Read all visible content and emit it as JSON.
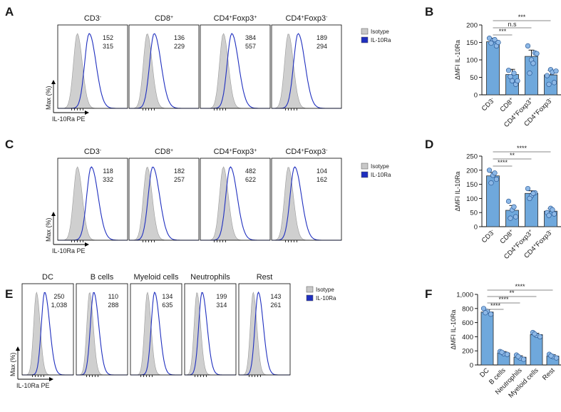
{
  "figure": {
    "flow_panels": [
      {
        "label": "A",
        "y_axis_label": "Max (%)",
        "x_axis_label": "IL-10Ra PE",
        "legend": [
          {
            "name": "Isotype",
            "color": "#c8c8c8"
          },
          {
            "name": "IL-10Ra",
            "color": "#1f2fbf"
          }
        ],
        "histograms": [
          {
            "title": "CD3",
            "sup": "-",
            "isotype_mfi": "152",
            "il10ra_mfi": "315"
          },
          {
            "title": "CD8",
            "sup": "+",
            "isotype_mfi": "136",
            "il10ra_mfi": "229"
          },
          {
            "title": "CD4",
            "sup": "+",
            "title2": "Foxp3",
            "sup2": "+",
            "isotype_mfi": "384",
            "il10ra_mfi": "557"
          },
          {
            "title": "CD4",
            "sup": "+",
            "title2": "Foxp3",
            "sup2": "-",
            "isotype_mfi": "189",
            "il10ra_mfi": "294"
          }
        ]
      },
      {
        "label": "C",
        "y_axis_label": "Max (%)",
        "x_axis_label": "IL-10Ra PE",
        "legend": [
          {
            "name": "Isotype",
            "color": "#c8c8c8"
          },
          {
            "name": "IL-10Ra",
            "color": "#1f2fbf"
          }
        ],
        "histograms": [
          {
            "title": "CD3",
            "sup": "-",
            "isotype_mfi": "118",
            "il10ra_mfi": "332"
          },
          {
            "title": "CD8",
            "sup": "+",
            "isotype_mfi": "182",
            "il10ra_mfi": "257"
          },
          {
            "title": "CD4",
            "sup": "+",
            "title2": "Foxp3",
            "sup2": "+",
            "isotype_mfi": "482",
            "il10ra_mfi": "622"
          },
          {
            "title": "CD4",
            "sup": "+",
            "title2": "Foxp3",
            "sup2": "-",
            "isotype_mfi": "104",
            "il10ra_mfi": "162"
          }
        ]
      },
      {
        "label": "E",
        "y_axis_label": "Max (%)",
        "x_axis_label": "IL-10Ra PE",
        "legend": [
          {
            "name": "Isotype",
            "color": "#c8c8c8"
          },
          {
            "name": "IL-10Ra",
            "color": "#1f2fbf"
          }
        ],
        "histograms": [
          {
            "title": "DC",
            "isotype_mfi": "250",
            "il10ra_mfi": "1,038"
          },
          {
            "title": "B cells",
            "isotype_mfi": "110",
            "il10ra_mfi": "288"
          },
          {
            "title": "Myeloid cells",
            "isotype_mfi": "134",
            "il10ra_mfi": "635"
          },
          {
            "title": "Neutrophils",
            "isotype_mfi": "199",
            "il10ra_mfi": "314"
          },
          {
            "title": "Rest",
            "isotype_mfi": "143",
            "il10ra_mfi": "261"
          }
        ]
      }
    ]
  },
  "chart_data": [
    {
      "label": "B",
      "type": "bar",
      "ylabel": "ΔMFI IL-10Ra",
      "ylim": [
        0,
        200
      ],
      "yticks": [
        "0",
        "50",
        "100",
        "150",
        "200"
      ],
      "categories": [
        {
          "base": "CD3",
          "sup": "-"
        },
        {
          "base": "CD8",
          "sup": "+"
        },
        {
          "base": "CD4",
          "sup": "+",
          "base2": "Foxp3",
          "sup2": "+"
        },
        {
          "base": "CD4",
          "sup": "+",
          "base2": "Foxp3",
          "sup2": "-"
        }
      ],
      "values": [
        152,
        58,
        110,
        57
      ],
      "errors": [
        10,
        15,
        18,
        13
      ],
      "points": [
        [
          162,
          155,
          140,
          148,
          158,
          150
        ],
        [
          70,
          40,
          30,
          52,
          62,
          40
        ],
        [
          140,
          100,
          120,
          62,
          90,
          118
        ],
        [
          55,
          72,
          35,
          30,
          65,
          68
        ]
      ],
      "significance": [
        {
          "from": 0,
          "to": 1,
          "label": "***"
        },
        {
          "from": 0,
          "to": 2,
          "label": "n.s"
        },
        {
          "from": 0,
          "to": 3,
          "label": "***"
        }
      ]
    },
    {
      "label": "D",
      "type": "bar",
      "ylabel": "ΔMFI IL-10Ra",
      "ylim": [
        0,
        250
      ],
      "yticks": [
        "0",
        "50",
        "100",
        "150",
        "200",
        "250"
      ],
      "categories": [
        {
          "base": "CD3",
          "sup": "-"
        },
        {
          "base": "CD8",
          "sup": "+"
        },
        {
          "base": "CD4",
          "sup": "+",
          "base2": "Foxp3",
          "sup2": "+"
        },
        {
          "base": "CD4",
          "sup": "+",
          "base2": "Foxp3",
          "sup2": "-"
        }
      ],
      "values": [
        180,
        58,
        118,
        55
      ],
      "errors": [
        12,
        17,
        9,
        10
      ],
      "points": [
        [
          200,
          182,
          168,
          155,
          190
        ],
        [
          90,
          60,
          35,
          30,
          70
        ],
        [
          135,
          110,
          120,
          100,
          118
        ],
        [
          50,
          65,
          45,
          40,
          60
        ]
      ],
      "significance": [
        {
          "from": 0,
          "to": 1,
          "label": "****"
        },
        {
          "from": 0,
          "to": 2,
          "label": "**"
        },
        {
          "from": 0,
          "to": 3,
          "label": "****"
        }
      ]
    },
    {
      "label": "F",
      "type": "bar",
      "ylabel": "ΔMFI IL-10Ra",
      "ylim": [
        0,
        1000
      ],
      "yticks": [
        "0",
        "200",
        "400",
        "600",
        "800",
        "1,000"
      ],
      "categories": [
        {
          "base": "DC"
        },
        {
          "base": "B cells"
        },
        {
          "base": "Neutrophils"
        },
        {
          "base": "Myeloid cells"
        },
        {
          "base": "Rest"
        }
      ],
      "values": [
        750,
        170,
        110,
        430,
        125
      ],
      "errors": [
        30,
        20,
        20,
        20,
        20
      ],
      "points": [
        [
          800,
          760,
          720,
          740
        ],
        [
          190,
          160,
          150,
          180
        ],
        [
          140,
          100,
          80,
          120
        ],
        [
          460,
          420,
          400,
          440
        ],
        [
          150,
          120,
          100,
          130
        ]
      ],
      "significance": [
        {
          "from": 0,
          "to": 1,
          "label": "****"
        },
        {
          "from": 0,
          "to": 2,
          "label": "****"
        },
        {
          "from": 0,
          "to": 3,
          "label": "**"
        },
        {
          "from": 0,
          "to": 4,
          "label": "****"
        }
      ]
    }
  ]
}
